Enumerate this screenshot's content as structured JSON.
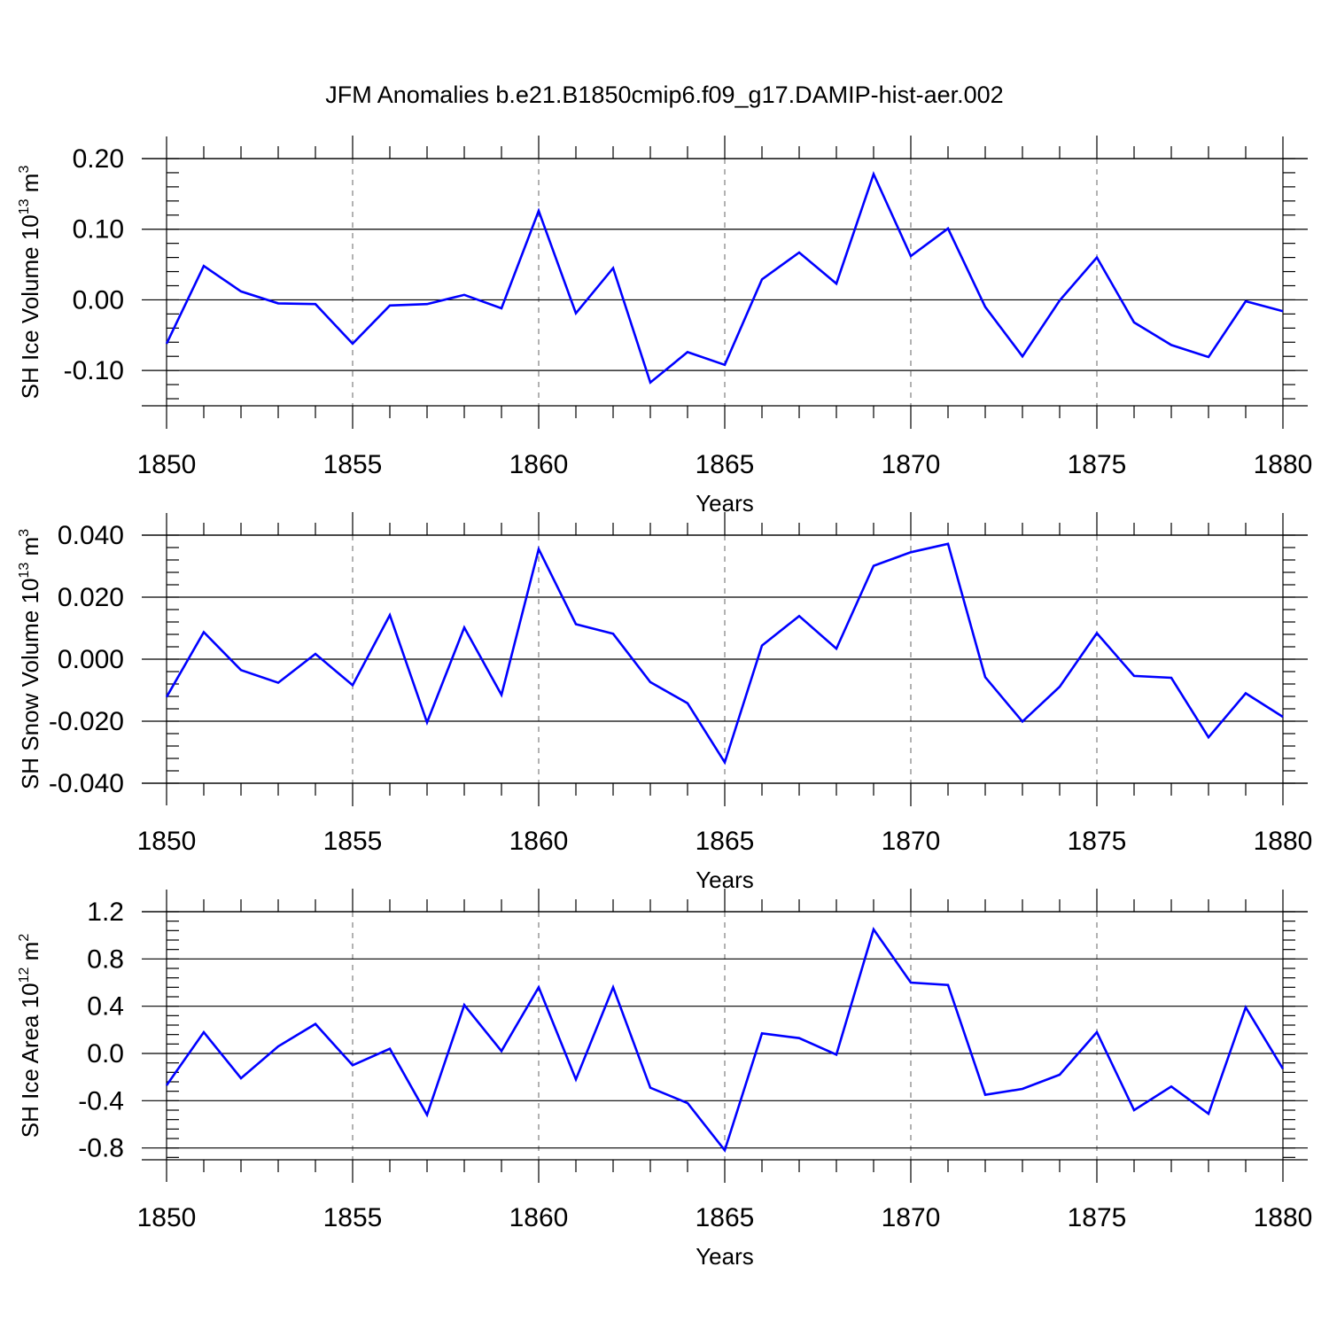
{
  "title": "JFM Anomalies b.e21.B1850cmip6.f09_g17.DAMIP-hist-aer.002",
  "colors": {
    "line": "#0000ff",
    "axis": "#000000",
    "grid": "#7f7f7f"
  },
  "chart_data": [
    {
      "type": "line",
      "ylabel": {
        "prefix": "SH Ice Volume 10",
        "exp1": "13",
        "mid": " m",
        "exp2": "3"
      },
      "xlabel": "Years",
      "xlim": [
        1850,
        1880
      ],
      "ylim": [
        -0.15,
        0.2
      ],
      "yticks": [
        -0.1,
        0.0,
        0.1,
        0.2
      ],
      "ytick_labels": [
        "-0.10",
        "0.00",
        "0.10",
        "0.20"
      ],
      "xticks": [
        1850,
        1855,
        1860,
        1865,
        1870,
        1875,
        1880
      ],
      "xtick_labels": [
        "1850",
        "1855",
        "1860",
        "1865",
        "1870",
        "1875",
        "1880"
      ],
      "grid": "vertical dashed at major x ticks",
      "x": [
        1850,
        1851,
        1852,
        1853,
        1854,
        1855,
        1856,
        1857,
        1858,
        1859,
        1860,
        1861,
        1862,
        1863,
        1864,
        1865,
        1866,
        1867,
        1868,
        1869,
        1870,
        1871,
        1872,
        1873,
        1874,
        1875,
        1876,
        1877,
        1878,
        1879,
        1880
      ],
      "values": [
        -0.062,
        0.048,
        0.012,
        -0.005,
        -0.006,
        -0.062,
        -0.008,
        -0.006,
        0.007,
        -0.012,
        0.126,
        -0.019,
        0.045,
        -0.117,
        -0.074,
        -0.092,
        0.029,
        0.067,
        0.023,
        0.178,
        0.062,
        0.101,
        -0.01,
        -0.08,
        -0.001,
        0.06,
        -0.032,
        -0.064,
        -0.081,
        -0.002,
        -0.016
      ]
    },
    {
      "type": "line",
      "ylabel": {
        "prefix": "SH Snow Volume 10",
        "exp1": "13",
        "mid": " m",
        "exp2": "3"
      },
      "xlabel": "Years",
      "xlim": [
        1850,
        1880
      ],
      "ylim": [
        -0.04,
        0.04
      ],
      "yticks": [
        -0.04,
        -0.02,
        0.0,
        0.02,
        0.04
      ],
      "ytick_labels": [
        "-0.040",
        "-0.020",
        "0.000",
        "0.020",
        "0.040"
      ],
      "xticks": [
        1850,
        1855,
        1860,
        1865,
        1870,
        1875,
        1880
      ],
      "xtick_labels": [
        "1850",
        "1855",
        "1860",
        "1865",
        "1870",
        "1875",
        "1880"
      ],
      "grid": "vertical dashed at major x ticks",
      "x": [
        1850,
        1851,
        1852,
        1853,
        1854,
        1855,
        1856,
        1857,
        1858,
        1859,
        1860,
        1861,
        1862,
        1863,
        1864,
        1865,
        1866,
        1867,
        1868,
        1869,
        1870,
        1871,
        1872,
        1873,
        1874,
        1875,
        1876,
        1877,
        1878,
        1879,
        1880
      ],
      "values": [
        -0.0122,
        0.0087,
        -0.0035,
        -0.0076,
        0.0017,
        -0.0084,
        0.0142,
        -0.0204,
        0.0102,
        -0.0115,
        0.0355,
        0.0113,
        0.0082,
        -0.0074,
        -0.0142,
        -0.0333,
        0.0044,
        0.0139,
        0.0034,
        0.0301,
        0.0345,
        0.0372,
        -0.0058,
        -0.0201,
        -0.0089,
        0.0084,
        -0.0054,
        -0.006,
        -0.0252,
        -0.011,
        -0.0186
      ]
    },
    {
      "type": "line",
      "ylabel": {
        "prefix": "SH Ice Area 10",
        "exp1": "12",
        "mid": " m",
        "exp2": "2"
      },
      "xlabel": "Years",
      "xlim": [
        1850,
        1880
      ],
      "ylim": [
        -0.9,
        1.2
      ],
      "yticks": [
        -0.8,
        -0.4,
        0.0,
        0.4,
        0.8,
        1.2
      ],
      "ytick_labels": [
        "-0.8",
        "-0.4",
        "0.0",
        "0.4",
        "0.8",
        "1.2"
      ],
      "xticks": [
        1850,
        1855,
        1860,
        1865,
        1870,
        1875,
        1880
      ],
      "xtick_labels": [
        "1850",
        "1855",
        "1860",
        "1865",
        "1870",
        "1875",
        "1880"
      ],
      "grid": "vertical dashed at major x ticks",
      "x": [
        1850,
        1851,
        1852,
        1853,
        1854,
        1855,
        1856,
        1857,
        1858,
        1859,
        1860,
        1861,
        1862,
        1863,
        1864,
        1865,
        1866,
        1867,
        1868,
        1869,
        1870,
        1871,
        1872,
        1873,
        1874,
        1875,
        1876,
        1877,
        1878,
        1879,
        1880
      ],
      "values": [
        -0.27,
        0.18,
        -0.21,
        0.06,
        0.25,
        -0.1,
        0.04,
        -0.52,
        0.41,
        0.02,
        0.56,
        -0.22,
        0.56,
        -0.29,
        -0.42,
        -0.82,
        0.17,
        0.13,
        -0.01,
        1.05,
        0.6,
        0.58,
        -0.35,
        -0.3,
        -0.18,
        0.18,
        -0.48,
        -0.28,
        -0.51,
        0.39,
        -0.13
      ]
    }
  ]
}
